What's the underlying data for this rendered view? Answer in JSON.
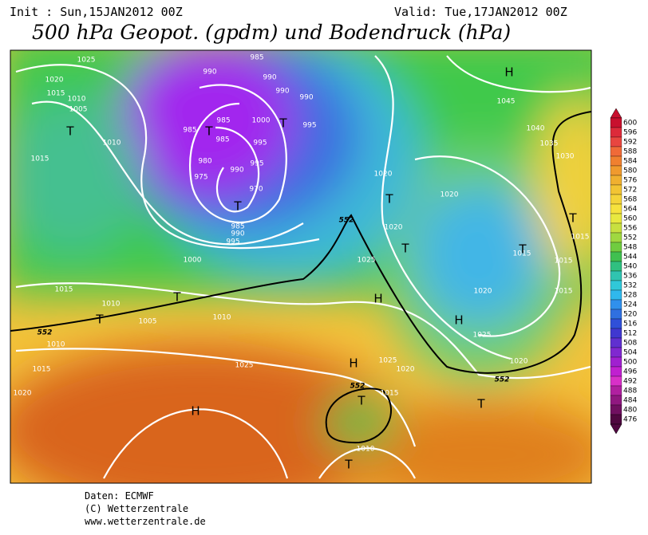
{
  "header": {
    "init": "Init : Sun,15JAN2012 00Z",
    "valid": "Valid: Tue,17JAN2012 00Z",
    "title": "500 hPa Geopot. (gpdm) und Bodendruck (hPa)"
  },
  "map": {
    "isobar_labels": [
      "1025",
      "1020",
      "1015",
      "1010",
      "1005",
      "1010",
      "1015",
      "985",
      "990",
      "990",
      "990",
      "990",
      "1000",
      "995",
      "985",
      "985",
      "985",
      "995",
      "980",
      "995",
      "990",
      "975",
      "970",
      "985",
      "990",
      "995",
      "1000",
      "1045",
      "1040",
      "1035",
      "1030",
      "1020",
      "1020",
      "1020",
      "1025",
      "1015",
      "1015",
      "1015",
      "1020",
      "1015",
      "1025",
      "1020",
      "1015",
      "1010",
      "1005",
      "1010",
      "1010",
      "1015",
      "1025",
      "1025",
      "1020",
      "1015",
      "1010",
      "1020"
    ],
    "geopotential_labels": [
      "552",
      "552",
      "552",
      "552"
    ],
    "pressure_centers": [
      "H",
      "T",
      "T",
      "T",
      "T",
      "T",
      "T",
      "T",
      "T",
      "T",
      "T",
      "H",
      "H",
      "H",
      "T",
      "H",
      "T",
      "T"
    ]
  },
  "colorbar": {
    "labels": [
      600,
      596,
      592,
      588,
      584,
      580,
      576,
      572,
      568,
      564,
      560,
      556,
      552,
      548,
      544,
      540,
      536,
      532,
      528,
      524,
      520,
      516,
      512,
      508,
      504,
      500,
      496,
      492,
      488,
      484,
      480,
      476
    ]
  },
  "footer": {
    "source": "Daten: ECMWF",
    "copyright": "(C) Wetterzentrale",
    "url": "www.wetterzentrale.de"
  }
}
